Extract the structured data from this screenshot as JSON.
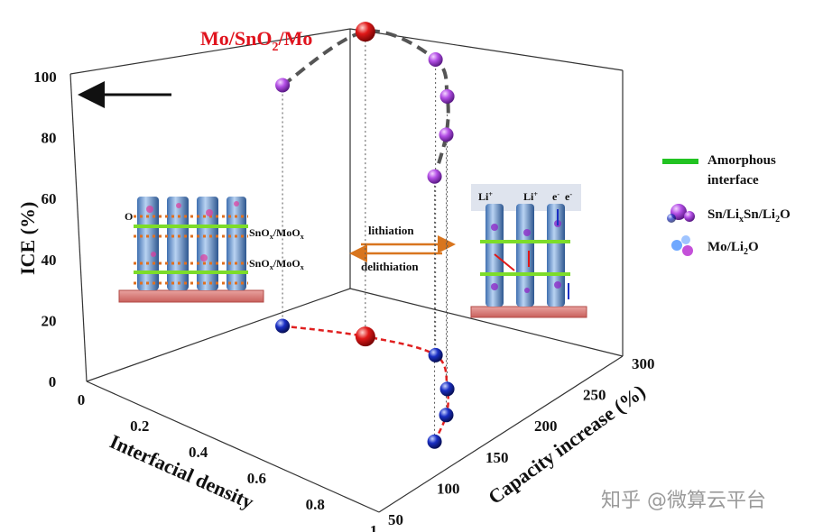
{
  "chart_data": {
    "type": "scatter",
    "title_parts": [
      "Mo/SnO",
      "2",
      "/Mo"
    ],
    "y_axis": {
      "label": "ICE (%)",
      "ticks": [
        "0",
        "20",
        "40",
        "60",
        "80",
        "100"
      ],
      "range": [
        0,
        100
      ]
    },
    "x_axis": {
      "label": "Interfacial density",
      "ticks": [
        "0",
        "0.2",
        "0.4",
        "0.6",
        "0.8",
        "1"
      ],
      "range": [
        0,
        1
      ]
    },
    "z_axis": {
      "label": "Capacity increase (%)",
      "ticks": [
        "50",
        "100",
        "150",
        "200",
        "250",
        "300"
      ],
      "range": [
        50,
        300
      ]
    },
    "series": [
      {
        "color": "#b44fe6",
        "highlight_color": "#e01818",
        "points": [
          {
            "x": 0.22,
            "z": 185,
            "y": 79,
            "highlight": false
          },
          {
            "x": 0.42,
            "z": 210,
            "y": 100,
            "highlight": true
          },
          {
            "x": 0.62,
            "z": 222,
            "y": 97,
            "highlight": false
          },
          {
            "x": 0.75,
            "z": 195,
            "y": 96,
            "highlight": false
          },
          {
            "x": 0.83,
            "z": 170,
            "y": 92,
            "highlight": false
          },
          {
            "x": 0.89,
            "z": 140,
            "y": 87,
            "highlight": false
          }
        ]
      },
      {
        "color": "#1a2fc4",
        "highlight_color": "#e01818",
        "points": [
          {
            "x": 0.22,
            "z": 185,
            "y": 0,
            "highlight": false
          },
          {
            "x": 0.42,
            "z": 210,
            "y": 0,
            "highlight": true
          },
          {
            "x": 0.62,
            "z": 222,
            "y": 0,
            "highlight": false
          },
          {
            "x": 0.75,
            "z": 195,
            "y": 0,
            "highlight": false
          },
          {
            "x": 0.83,
            "z": 170,
            "y": 0,
            "highlight": false
          },
          {
            "x": 0.89,
            "z": 140,
            "y": 0,
            "highlight": false
          }
        ]
      }
    ],
    "annotations": {
      "left_inset": {
        "o_label": "O",
        "top_label": [
          "SnO",
          "x",
          "/MoO",
          "x"
        ],
        "bottom_label": [
          "SnO",
          "x",
          "/MoO",
          "x"
        ]
      },
      "lithiation": "lithiation",
      "delithiation": "delithiation",
      "right_inset": {
        "li_1": "Li",
        "li_2": "Li",
        "e_1": "e",
        "e_2": "e",
        "plus": "+",
        "minus": "-"
      }
    },
    "legend": {
      "placement": "right",
      "items": [
        {
          "line1": "Amorphous",
          "line2": "interface",
          "color": "#22c322"
        },
        {
          "parts": [
            "Sn/Li",
            "x",
            "Sn/Li",
            "2",
            "O"
          ],
          "color": "#b44fe6"
        },
        {
          "parts": [
            "Mo/Li",
            "2",
            "O"
          ],
          "color": "#4a6fe0"
        }
      ]
    },
    "colors": {
      "top_curve": "#555555",
      "bottom_curve": "#e02020",
      "axis_arrow": "#111111"
    }
  },
  "watermark": "知乎 @微算云平台"
}
